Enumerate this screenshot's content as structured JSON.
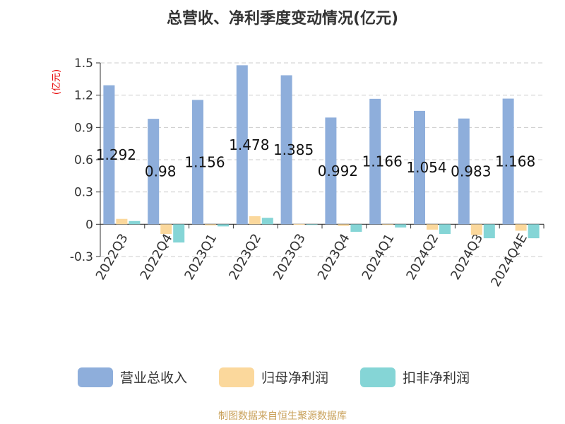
{
  "chart_data": {
    "type": "bar",
    "title": "总营收、净利季度变动情况(亿元)",
    "unit_label": "(亿元)",
    "categories": [
      "2022Q3",
      "2022Q4",
      "2023Q1",
      "2023Q2",
      "2023Q3",
      "2023Q4",
      "2024Q1",
      "2024Q2",
      "2024Q3",
      "2024Q4E"
    ],
    "series": [
      {
        "name": "营业总收入",
        "color": "#8eaedb",
        "values": [
          1.292,
          0.98,
          1.156,
          1.478,
          1.385,
          0.992,
          1.166,
          1.054,
          0.983,
          1.168
        ],
        "labels": [
          "1.292",
          "0.98",
          "1.156",
          "1.478",
          "1.385",
          "0.992",
          "1.166",
          "1.054",
          "0.983",
          "1.168"
        ]
      },
      {
        "name": "归母净利润",
        "color": "#fbd89c",
        "values": [
          0.05,
          -0.09,
          -0.01,
          0.075,
          0.003,
          -0.015,
          -0.005,
          -0.05,
          -0.1,
          -0.06
        ]
      },
      {
        "name": "扣非净利润",
        "color": "#85d5d6",
        "values": [
          0.03,
          -0.17,
          -0.02,
          0.06,
          -0.005,
          -0.07,
          -0.03,
          -0.09,
          -0.13,
          -0.13
        ]
      }
    ],
    "ylim": [
      -0.3,
      1.5
    ],
    "yticks": [
      "1.5",
      "1.2",
      "0.9",
      "0.6",
      "0.3",
      "0",
      "-0.3"
    ],
    "ytick_values": [
      1.5,
      1.2,
      0.9,
      0.6,
      0.3,
      0,
      -0.3
    ],
    "grid": true,
    "legend_position": "bottom"
  },
  "footer": "制图数据来自恒生聚源数据库"
}
